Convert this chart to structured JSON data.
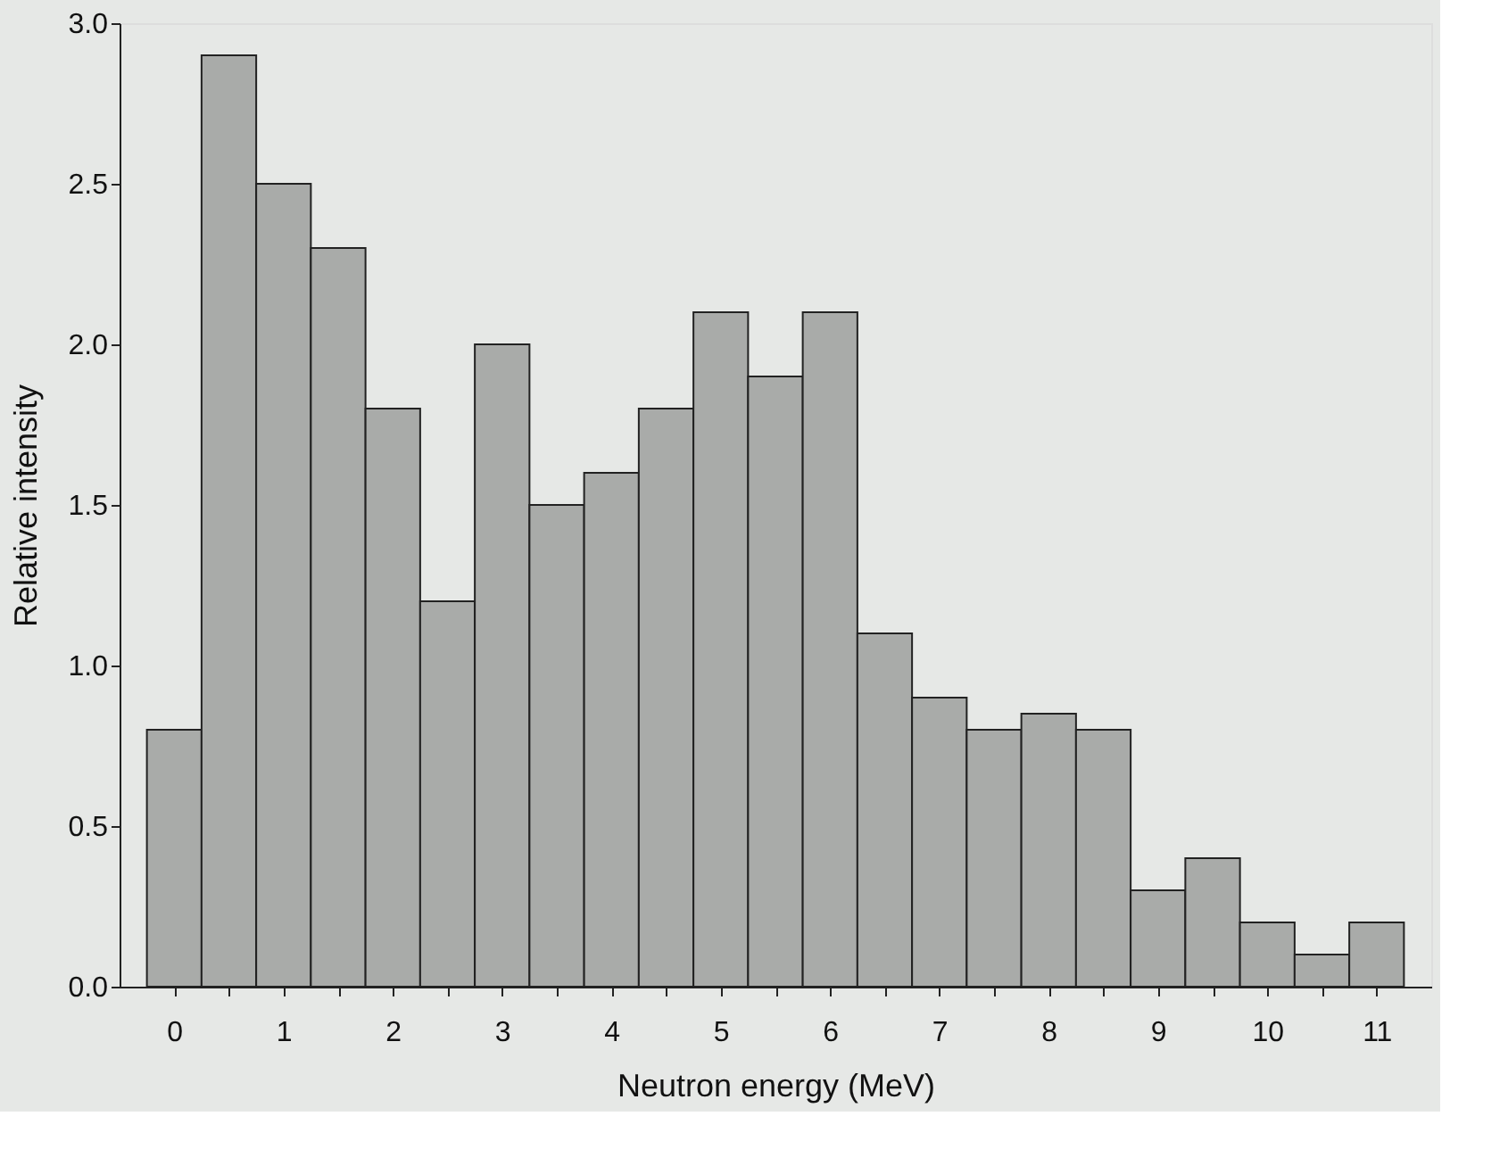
{
  "chart_data": {
    "type": "histogram",
    "xlabel": "Neutron energy (MeV)",
    "ylabel": "Relative intensity",
    "bins": [
      -0.25,
      0.25,
      0.75,
      1.25,
      1.75,
      2.25,
      2.75,
      3.25,
      3.75,
      4.25,
      4.75,
      5.25,
      5.75,
      6.25,
      6.75,
      7.25,
      7.75,
      8.25,
      8.75,
      9.25,
      9.75,
      10.25,
      10.75,
      11.25
    ],
    "values": [
      0.8,
      2.9,
      2.5,
      2.3,
      1.8,
      1.2,
      2.0,
      1.5,
      1.6,
      1.8,
      2.1,
      1.9,
      2.1,
      1.1,
      0.9,
      0.8,
      0.85,
      0.8,
      0.3,
      0.4,
      0.2,
      0.1,
      0.2
    ],
    "color": "#a9aba9",
    "xlim": [
      -0.5,
      11.5
    ],
    "xticks": [
      0,
      {
        "value": 0.5,
        "label": null
      },
      1,
      {
        "value": 1.5,
        "label": null
      },
      2,
      {
        "value": 2.5,
        "label": null
      },
      3,
      {
        "value": 3.5,
        "label": null
      },
      4,
      {
        "value": 4.5,
        "label": null
      },
      5,
      {
        "value": 5.5,
        "label": null
      },
      6,
      {
        "value": 6.5,
        "label": null
      },
      7,
      {
        "value": 7.5,
        "label": null
      },
      8,
      {
        "value": 8.5,
        "label": null
      },
      9,
      {
        "value": 9.5,
        "label": null
      },
      10,
      {
        "value": 10.5,
        "label": null
      },
      11
    ],
    "ylim": [
      0,
      3
    ],
    "yticks": [
      {
        "value": 0,
        "label": "0.0"
      },
      {
        "value": 0.5,
        "label": "0.5"
      },
      {
        "value": 1,
        "label": "1.0"
      },
      {
        "value": 1.5,
        "label": "1.5"
      },
      {
        "value": 2,
        "label": "2.0"
      },
      {
        "value": 2.5,
        "label": "2.5"
      },
      {
        "value": 3,
        "label": "3.0"
      }
    ]
  }
}
